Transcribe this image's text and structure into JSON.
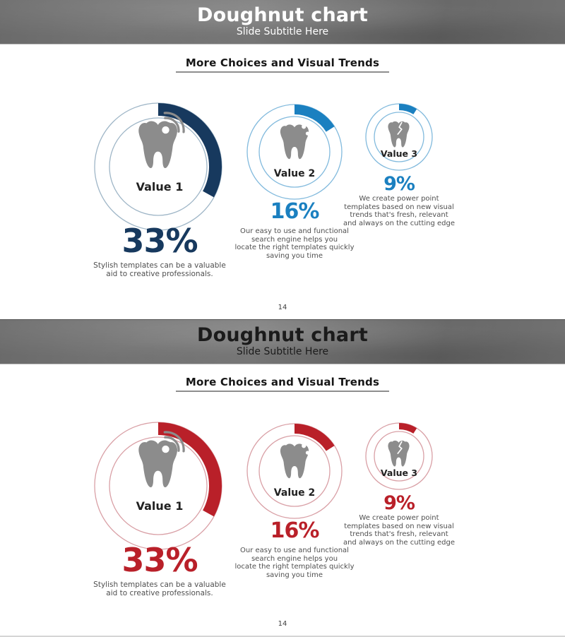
{
  "tooth_color": "#8c8c8c",
  "slides": [
    {
      "theme": "blue",
      "header": {
        "title": "Doughnut chart",
        "subtitle": "Slide Subtitle Here",
        "text_color": "#ffffff"
      },
      "section_heading": "More Choices and Visual Trends",
      "page_number": "14",
      "charts": [
        {
          "value_label": "Value 1",
          "pct": 33,
          "pct_text": "33%",
          "arc_color": "#17395e",
          "ring_color": "#9fb6c7",
          "caption": "Stylish templates can be a valuable\naid to creative professionals.",
          "icon": "tooth-signal"
        },
        {
          "value_label": "Value 2",
          "pct": 16,
          "pct_text": "16%",
          "arc_color": "#1b80c0",
          "ring_color": "#82badd",
          "caption": "Our easy to use and functional\nsearch engine helps you\nlocate the right templates quickly\nsaving you time",
          "icon": "tooth"
        },
        {
          "value_label": "Value 3",
          "pct": 9,
          "pct_text": "9%",
          "arc_color": "#1b80c0",
          "ring_color": "#82badd",
          "caption": "We create power point\ntemplates based on new visual\ntrends that's fresh, relevant\nand always on the cutting edge",
          "icon": "tooth-crack"
        }
      ]
    },
    {
      "theme": "red",
      "header": {
        "title": "Doughnut chart",
        "subtitle": "Slide Subtitle Here",
        "text_color": "#1b1b1b"
      },
      "section_heading": "More Choices and Visual Trends",
      "page_number": "14",
      "charts": [
        {
          "value_label": "Value 1",
          "pct": 33,
          "pct_text": "33%",
          "arc_color": "#b92029",
          "ring_color": "#d9a0a6",
          "caption": "Stylish templates can be a valuable\naid to creative professionals.",
          "icon": "tooth-signal"
        },
        {
          "value_label": "Value 2",
          "pct": 16,
          "pct_text": "16%",
          "arc_color": "#b92029",
          "ring_color": "#d9a0a6",
          "caption": "Our easy to use and functional\nsearch engine helps you\nlocate the right templates quickly\nsaving you time",
          "icon": "tooth"
        },
        {
          "value_label": "Value 3",
          "pct": 9,
          "pct_text": "9%",
          "arc_color": "#b92029",
          "ring_color": "#d9a0a6",
          "caption": "We create power point\ntemplates based on new visual\ntrends that's fresh, relevant\nand always on the cutting edge",
          "icon": "tooth-crack"
        }
      ]
    }
  ],
  "chart_data": [
    {
      "type": "pie",
      "subtype": "doughnut",
      "title": "More Choices and Visual Trends",
      "slide": "Doughnut chart (blue)",
      "series": [
        {
          "name": "Value 1",
          "value": 33
        },
        {
          "name": "Value 2",
          "value": 16
        },
        {
          "name": "Value 3",
          "value": 9
        }
      ],
      "legend_position": "inside-rings",
      "accent_colors": [
        "#17395e",
        "#1b80c0",
        "#1b80c0"
      ]
    },
    {
      "type": "pie",
      "subtype": "doughnut",
      "title": "More Choices and Visual Trends",
      "slide": "Doughnut chart (red)",
      "series": [
        {
          "name": "Value 1",
          "value": 33
        },
        {
          "name": "Value 2",
          "value": 16
        },
        {
          "name": "Value 3",
          "value": 9
        }
      ],
      "legend_position": "inside-rings",
      "accent_colors": [
        "#b92029",
        "#b92029",
        "#b92029"
      ]
    }
  ]
}
